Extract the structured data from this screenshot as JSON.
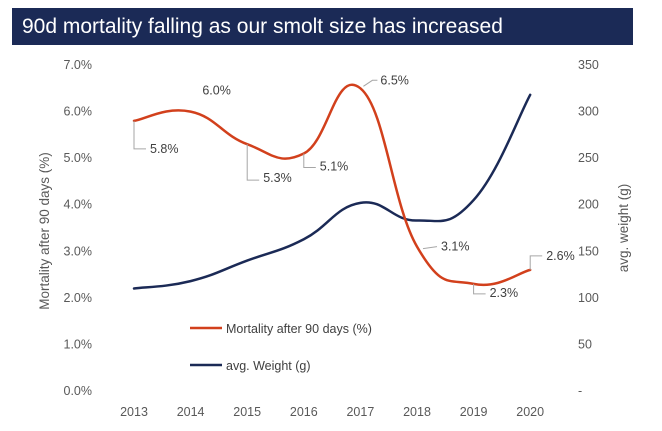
{
  "title": "90d mortality falling as our smolt size has increased",
  "chart_data": {
    "type": "line",
    "categories": [
      "2013",
      "2014",
      "2015",
      "2016",
      "2017",
      "2018",
      "2019",
      "2020"
    ],
    "y_left": {
      "label": "Mortality after 90 days (%)",
      "ylim": [
        0,
        7
      ],
      "ticks": [
        "0.0%",
        "1.0%",
        "2.0%",
        "3.0%",
        "4.0%",
        "5.0%",
        "6.0%",
        "7.0%"
      ]
    },
    "y_right": {
      "label": "avg. weight (g)",
      "ylim": [
        0,
        350
      ],
      "ticks": [
        "-",
        "50",
        "100",
        "150",
        "200",
        "250",
        "300",
        "350"
      ]
    },
    "series": [
      {
        "name": "Mortality after 90 days (%)",
        "axis": "left",
        "color": "#d2401c",
        "values": [
          5.8,
          6.0,
          5.3,
          5.1,
          6.5,
          3.1,
          2.3,
          2.6
        ],
        "labels": [
          "5.8%",
          "6.0%",
          "5.3%",
          "5.1%",
          "6.5%",
          "3.1%",
          "2.3%",
          "2.6%"
        ]
      },
      {
        "name": "avg. Weight (g)",
        "axis": "right",
        "color": "#1b2a56",
        "values": [
          110,
          118,
          140,
          163,
          202,
          183,
          205,
          318
        ]
      }
    ],
    "grid": false,
    "legend_position": "bottom-left-inside"
  }
}
